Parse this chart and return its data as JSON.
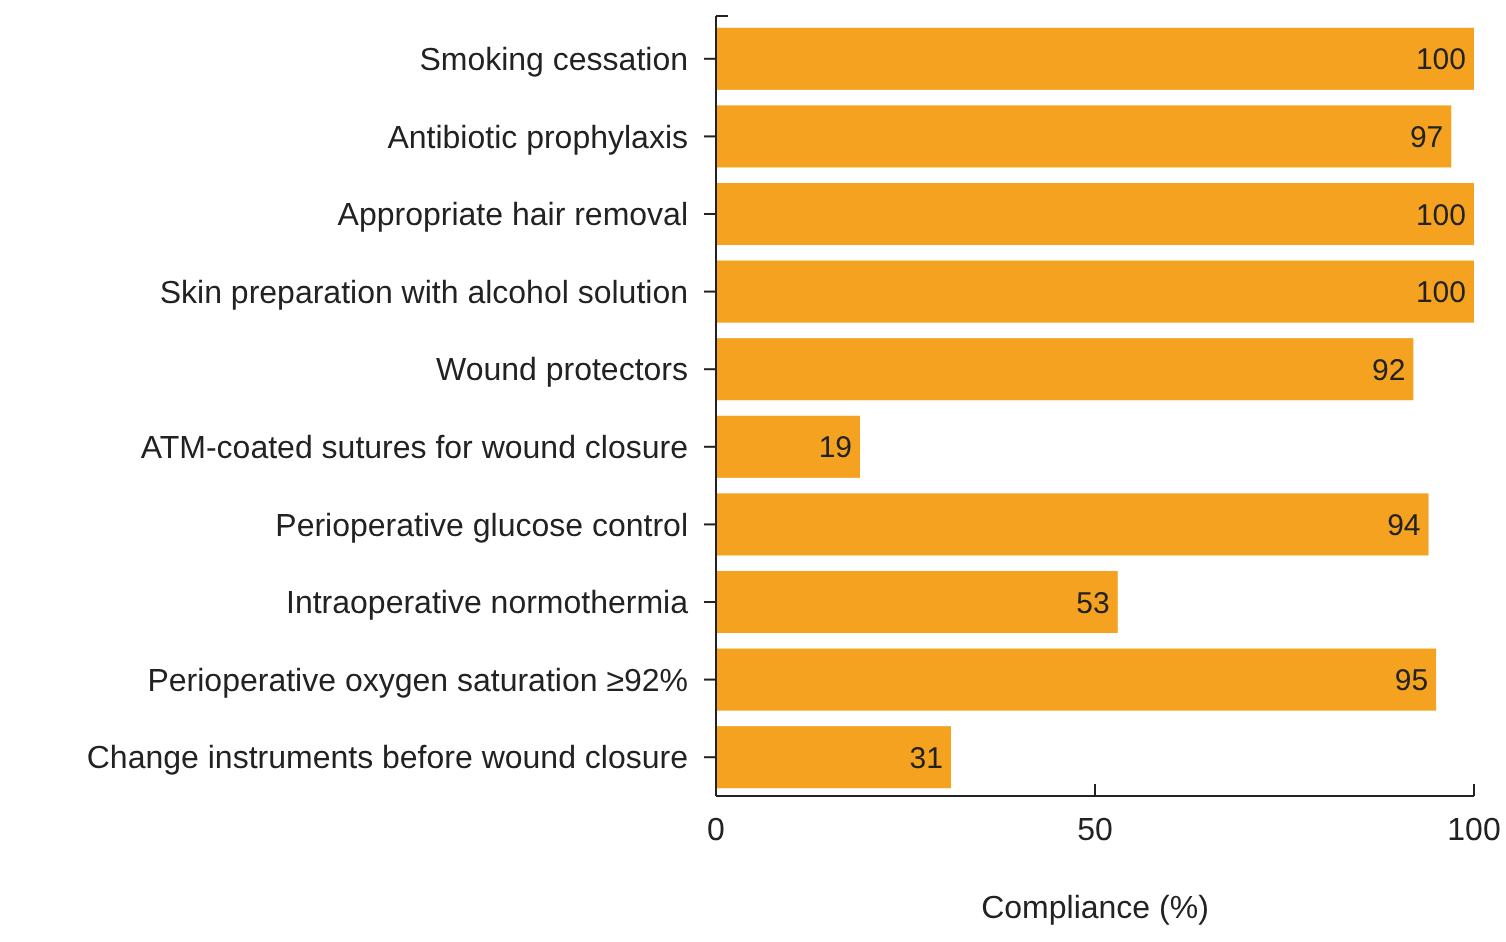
{
  "chart_data": {
    "type": "bar",
    "orientation": "horizontal",
    "xlabel": "Compliance (%)",
    "categories": [
      "Smoking cessation",
      "Antibiotic prophylaxis",
      "Appropriate hair removal",
      "Skin preparation with alcohol solution",
      "Wound protectors",
      "ATM-coated sutures for wound closure",
      "Perioperative glucose control",
      "Intraoperative normothermia",
      "Perioperative oxygen saturation ≥92%",
      "Change instruments before wound closure"
    ],
    "values": [
      100,
      97,
      100,
      100,
      92,
      19,
      94,
      53,
      95,
      31
    ],
    "color": "#f4a21f",
    "xlim": [
      0,
      100
    ],
    "xticks": [
      0,
      50,
      100
    ],
    "data_labels": true
  }
}
